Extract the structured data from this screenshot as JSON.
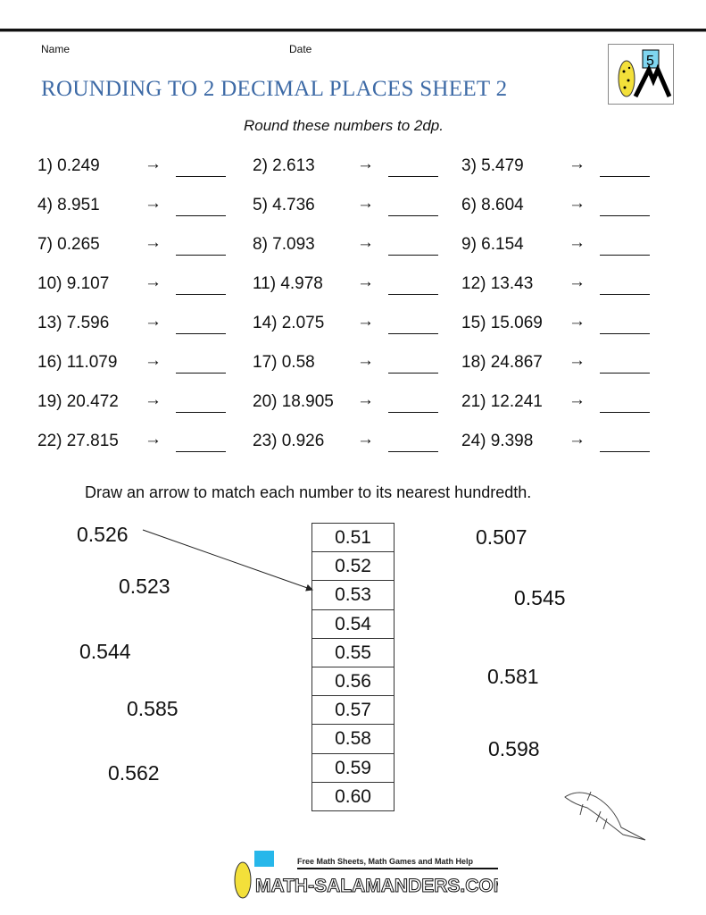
{
  "header": {
    "name_label": "Name",
    "date_label": "Date",
    "title": "ROUNDING TO 2 DECIMAL PLACES SHEET 2",
    "logo_number": "5"
  },
  "instructions": "Round these numbers to 2dp.",
  "arrow_symbol": "→",
  "problems": [
    "1) 0.249",
    "2) 2.613",
    "3) 5.479",
    "4) 8.951",
    "5) 4.736",
    "6) 8.604",
    "7) 0.265",
    "8) 7.093",
    "9) 6.154",
    "10) 9.107",
    "11) 4.978",
    "12) 13.43",
    "13) 7.596",
    "14) 2.075",
    "15) 15.069",
    "16) 11.079",
    "17) 0.58",
    "18) 24.867",
    "19) 20.472",
    "20) 18.905",
    "21) 12.241",
    "22) 27.815",
    "23) 0.926",
    "24) 9.398"
  ],
  "matching": {
    "instructions": "Draw an arrow to match each number to its nearest hundredth.",
    "left_numbers": [
      "0.526",
      "0.523",
      "0.544",
      "0.585",
      "0.562"
    ],
    "right_numbers": [
      "0.507",
      "0.545",
      "0.581",
      "0.598"
    ],
    "targets": [
      "0.51",
      "0.52",
      "0.53",
      "0.54",
      "0.55",
      "0.56",
      "0.57",
      "0.58",
      "0.59",
      "0.60"
    ]
  },
  "footer": {
    "tagline": "Free Math Sheets, Math Games and Math Help",
    "brand": "MATH-SALAMANDERS.COM"
  }
}
